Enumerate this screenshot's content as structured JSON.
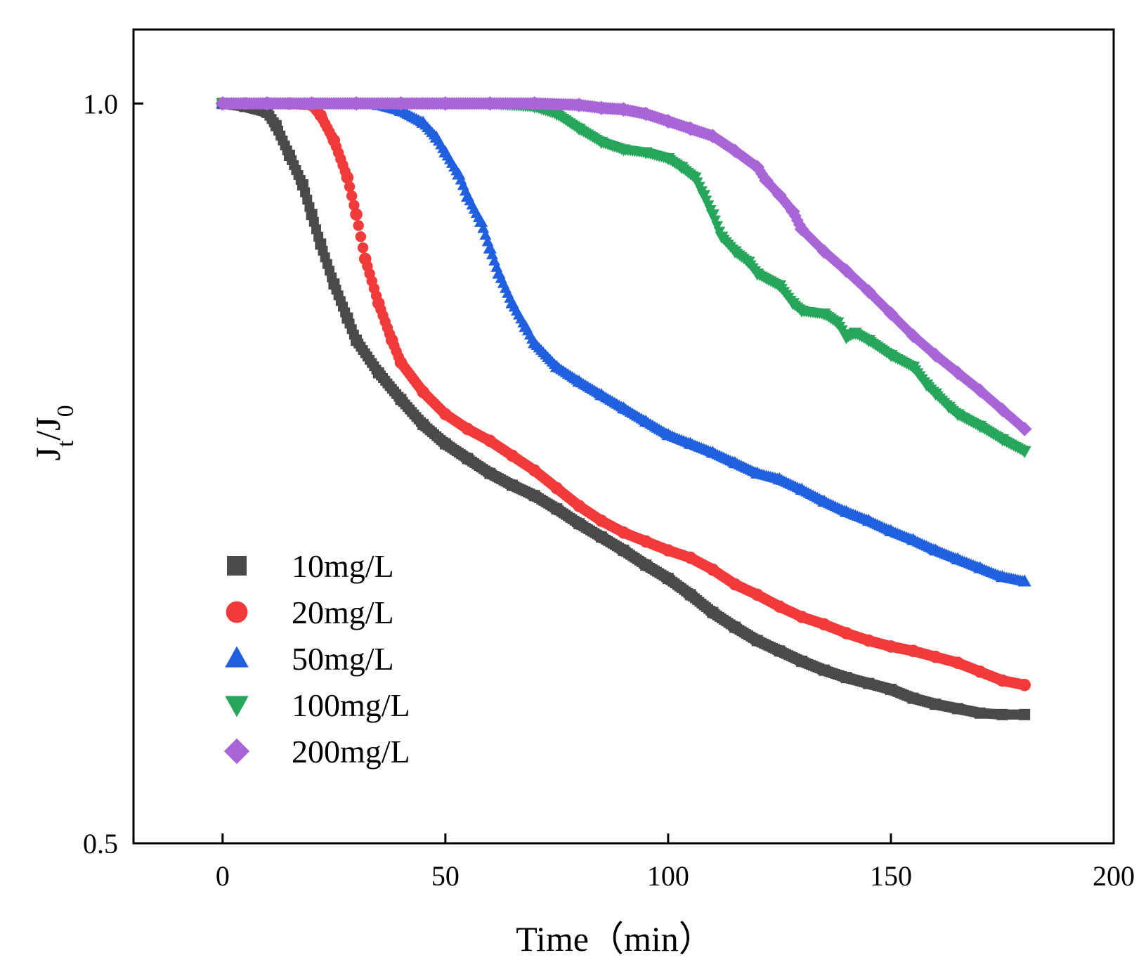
{
  "chart_data": {
    "type": "scatter",
    "title": "",
    "xlabel": "Time（min）",
    "ylabel_main": "J",
    "ylabel_sub1": "t",
    "ylabel_mid": "/J",
    "ylabel_sub2": "0",
    "xlim": [
      -20,
      200
    ],
    "ylim": [
      0.5,
      1.05
    ],
    "xticks": [
      0,
      50,
      100,
      150,
      200
    ],
    "xtick_labels": [
      "0",
      "50",
      "100",
      "150",
      "200"
    ],
    "yticks": [
      0.5,
      1.0
    ],
    "ytick_labels": [
      "0.5",
      "1.0"
    ],
    "grid": false,
    "legend_position": "bottom-left",
    "series": [
      {
        "name": "10mg/L",
        "color": "#4a4a4a",
        "marker": "square",
        "x": [
          0,
          5,
          10,
          12,
          15,
          18,
          20,
          22,
          25,
          28,
          30,
          35,
          40,
          45,
          50,
          55,
          60,
          65,
          70,
          75,
          80,
          85,
          90,
          95,
          100,
          105,
          110,
          115,
          120,
          125,
          130,
          135,
          140,
          145,
          150,
          155,
          160,
          165,
          170,
          175,
          180
        ],
        "y": [
          1.0,
          0.998,
          0.994,
          0.985,
          0.965,
          0.945,
          0.925,
          0.905,
          0.878,
          0.855,
          0.84,
          0.818,
          0.8,
          0.783,
          0.77,
          0.76,
          0.75,
          0.742,
          0.735,
          0.726,
          0.716,
          0.707,
          0.698,
          0.688,
          0.679,
          0.668,
          0.656,
          0.646,
          0.637,
          0.63,
          0.623,
          0.617,
          0.612,
          0.608,
          0.604,
          0.598,
          0.594,
          0.591,
          0.588,
          0.587,
          0.587
        ]
      },
      {
        "name": "20mg/L",
        "color": "#f23a3a",
        "marker": "circle",
        "x": [
          0,
          5,
          10,
          15,
          20,
          22,
          25,
          28,
          30,
          32,
          35,
          38,
          40,
          45,
          50,
          55,
          60,
          65,
          70,
          75,
          80,
          85,
          90,
          95,
          100,
          105,
          110,
          115,
          120,
          125,
          130,
          135,
          140,
          145,
          150,
          155,
          160,
          165,
          170,
          175,
          180
        ],
        "y": [
          1.0,
          1.0,
          1.0,
          1.0,
          0.999,
          0.992,
          0.975,
          0.95,
          0.925,
          0.895,
          0.865,
          0.84,
          0.825,
          0.805,
          0.79,
          0.78,
          0.772,
          0.762,
          0.752,
          0.74,
          0.728,
          0.718,
          0.71,
          0.704,
          0.698,
          0.693,
          0.685,
          0.675,
          0.668,
          0.66,
          0.653,
          0.648,
          0.642,
          0.637,
          0.633,
          0.63,
          0.626,
          0.622,
          0.616,
          0.61,
          0.607
        ]
      },
      {
        "name": "50mg/L",
        "color": "#1f5fe0",
        "marker": "triangle-up",
        "x": [
          0,
          10,
          20,
          30,
          35,
          40,
          45,
          48,
          50,
          53,
          55,
          58,
          60,
          62,
          65,
          68,
          70,
          75,
          80,
          85,
          90,
          95,
          100,
          105,
          110,
          115,
          120,
          125,
          130,
          135,
          140,
          145,
          150,
          155,
          160,
          165,
          170,
          175,
          180
        ],
        "y": [
          1.0,
          1.0,
          1.0,
          1.0,
          0.999,
          0.995,
          0.987,
          0.977,
          0.967,
          0.952,
          0.937,
          0.92,
          0.902,
          0.885,
          0.865,
          0.849,
          0.838,
          0.822,
          0.812,
          0.803,
          0.794,
          0.785,
          0.776,
          0.77,
          0.764,
          0.757,
          0.75,
          0.746,
          0.739,
          0.731,
          0.724,
          0.718,
          0.711,
          0.705,
          0.698,
          0.692,
          0.686,
          0.68,
          0.677
        ]
      },
      {
        "name": "100mg/L",
        "color": "#26a65b",
        "marker": "triangle-down",
        "x": [
          0,
          10,
          20,
          30,
          40,
          50,
          60,
          70,
          75,
          80,
          85,
          90,
          95,
          100,
          103,
          106,
          108,
          110,
          112,
          115,
          118,
          120,
          125,
          128,
          130,
          135,
          138,
          140,
          142,
          145,
          150,
          155,
          158,
          160,
          163,
          165,
          170,
          175,
          180
        ],
        "y": [
          1.0,
          1.0,
          1.0,
          1.0,
          1.0,
          1.0,
          1.0,
          0.998,
          0.993,
          0.983,
          0.974,
          0.969,
          0.967,
          0.963,
          0.957,
          0.95,
          0.938,
          0.925,
          0.91,
          0.9,
          0.893,
          0.885,
          0.877,
          0.865,
          0.86,
          0.858,
          0.852,
          0.842,
          0.845,
          0.84,
          0.83,
          0.822,
          0.81,
          0.804,
          0.795,
          0.79,
          0.782,
          0.773,
          0.765
        ]
      },
      {
        "name": "200mg/L",
        "color": "#a865d8",
        "marker": "diamond",
        "x": [
          0,
          10,
          20,
          30,
          40,
          50,
          60,
          70,
          80,
          85,
          90,
          95,
          100,
          105,
          110,
          115,
          120,
          122,
          125,
          128,
          130,
          135,
          140,
          145,
          150,
          155,
          160,
          165,
          170,
          175,
          180
        ],
        "y": [
          1.0,
          1.0,
          1.0,
          1.0,
          1.0,
          1.0,
          1.0,
          1.0,
          0.999,
          0.997,
          0.996,
          0.993,
          0.988,
          0.983,
          0.978,
          0.968,
          0.957,
          0.948,
          0.938,
          0.927,
          0.915,
          0.9,
          0.887,
          0.873,
          0.858,
          0.843,
          0.83,
          0.818,
          0.806,
          0.793,
          0.78
        ]
      }
    ]
  }
}
